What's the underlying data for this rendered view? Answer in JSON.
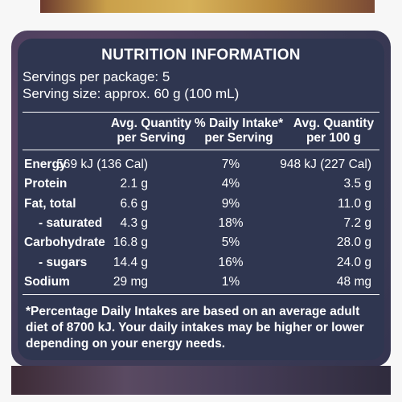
{
  "panel": {
    "title": "NUTRITION INFORMATION",
    "servings_per_package": "Servings per package: 5",
    "serving_size": "Serving size: approx. 60 g (100 mL)",
    "column_headers": [
      {
        "line1": "Avg. Quantity",
        "line2": "per Serving"
      },
      {
        "line1": "% Daily Intake*",
        "line2": "per Serving"
      },
      {
        "line1": "Avg. Quantity",
        "line2": "per 100 g"
      }
    ],
    "rows": [
      {
        "name": "Energy",
        "per_serving": "569 kJ (136 Cal)",
        "daily_intake": "7%",
        "per_100g": "948 kJ (227 Cal)",
        "indent": false
      },
      {
        "name": "Protein",
        "per_serving": "2.1 g",
        "daily_intake": "4%",
        "per_100g": "3.5 g",
        "indent": false
      },
      {
        "name": "Fat, total",
        "per_serving": "6.6 g",
        "daily_intake": "9%",
        "per_100g": "11.0 g",
        "indent": false
      },
      {
        "name": "- saturated",
        "per_serving": "4.3 g",
        "daily_intake": "18%",
        "per_100g": "7.2 g",
        "indent": true
      },
      {
        "name": "Carbohydrate",
        "per_serving": "16.8 g",
        "daily_intake": "5%",
        "per_100g": "28.0 g",
        "indent": false
      },
      {
        "name": "- sugars",
        "per_serving": "14.4 g",
        "daily_intake": "16%",
        "per_100g": "24.0 g",
        "indent": true
      },
      {
        "name": "Sodium",
        "per_serving": "29 mg",
        "daily_intake": "1%",
        "per_100g": "48 mg",
        "indent": false
      }
    ],
    "footnote": "*Percentage Daily Intakes are based on an average adult diet of 8700 kJ. Your daily intakes may be higher or lower depending on your energy needs."
  },
  "colors": {
    "label_background": "#2f3650",
    "text": "#ffffff"
  }
}
